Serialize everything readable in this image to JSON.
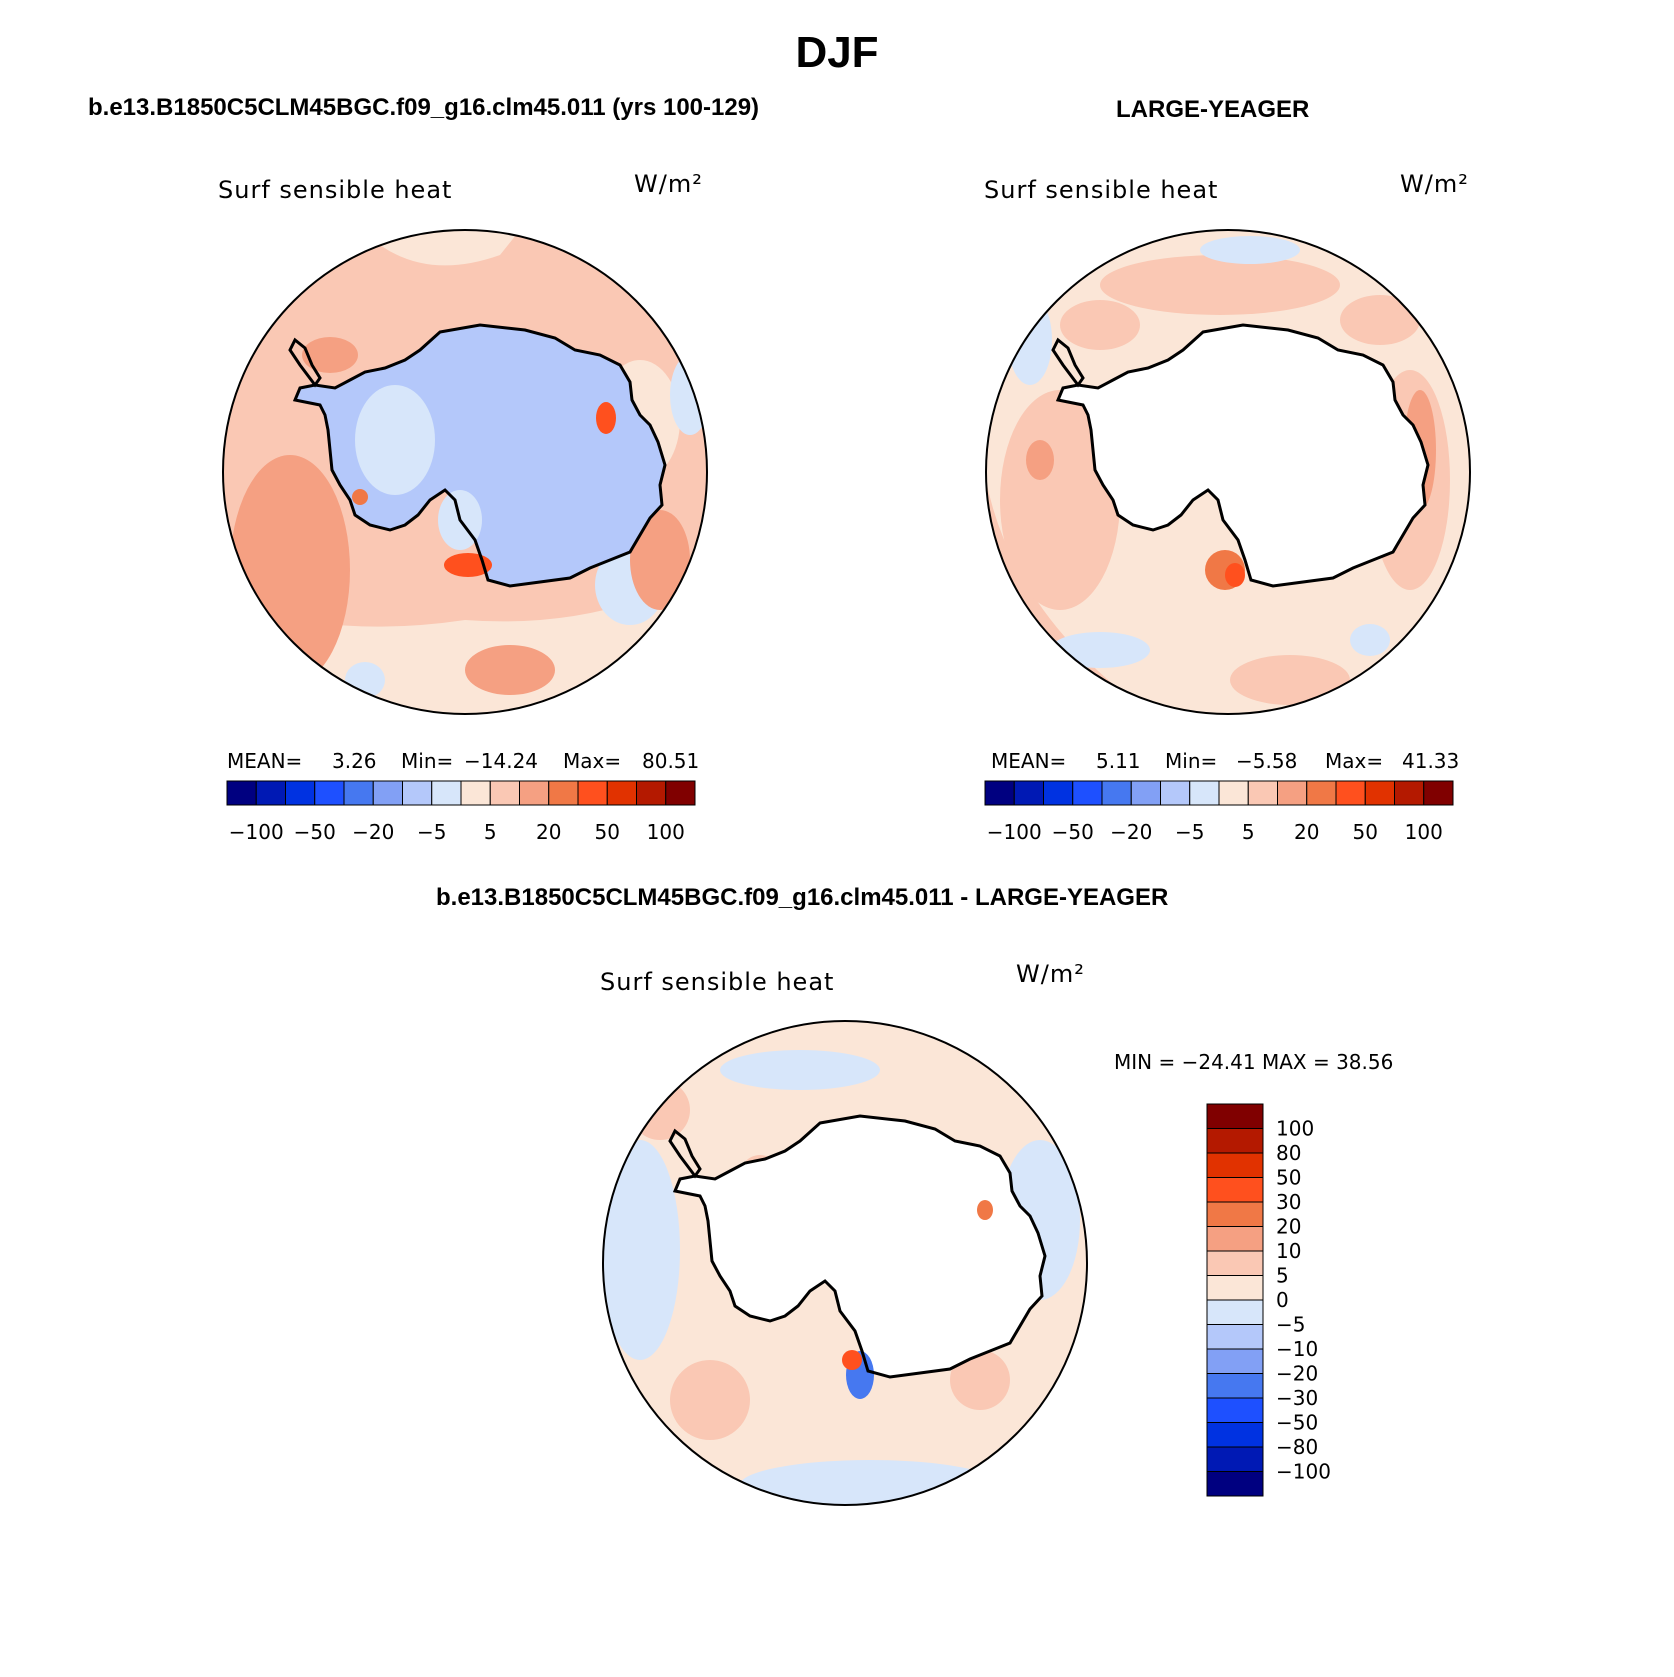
{
  "figure": {
    "season": "DJF",
    "panel_a_title": "b.e13.B1850C5CLM45BGC.f09_g16.clm45.011 (yrs 100-129)",
    "panel_b_title": "LARGE-YEAGER",
    "panel_c_title": "b.e13.B1850C5CLM45BGC.f09_g16.clm45.011 - LARGE-YEAGER"
  },
  "panels": [
    {
      "variable": "Surf sensible heat",
      "units": "W/m²",
      "mean_label": "MEAN=",
      "mean": "3.26",
      "min_label": "Min=",
      "min": "−14.24",
      "max_label": "Max=",
      "max": "80.51"
    },
    {
      "variable": "Surf sensible heat",
      "units": "W/m²",
      "mean_label": "MEAN=",
      "mean": "5.11",
      "min_label": "Min=",
      "min": "−5.58",
      "max_label": "Max=",
      "max": "41.33"
    },
    {
      "variable": "Surf sensible heat",
      "units": "W/m²",
      "minmax_text": "MIN = −24.41 MAX =   38.56"
    }
  ],
  "colorbar_horizontal": {
    "colors": [
      "#000080",
      "#0019b4",
      "#0032e1",
      "#1e50ff",
      "#4678f0",
      "#82a0f5",
      "#b4c8fa",
      "#d7e6fa",
      "#fbe6d7",
      "#fac8b4",
      "#f5a082",
      "#f07846",
      "#ff501e",
      "#e13200",
      "#b41900",
      "#800000"
    ],
    "tick_labels": [
      "−100",
      "−50",
      "−20",
      "−5",
      "5",
      "20",
      "50",
      "100"
    ]
  },
  "colorbar_vertical": {
    "colors": [
      "#800000",
      "#b41900",
      "#e13200",
      "#ff501e",
      "#f07846",
      "#f5a082",
      "#fac8b4",
      "#fbe6d7",
      "#d7e6fa",
      "#b4c8fa",
      "#82a0f5",
      "#4678f0",
      "#1e50ff",
      "#0032e1",
      "#0019b4",
      "#000080"
    ],
    "tick_labels": [
      "100",
      "80",
      "50",
      "30",
      "20",
      "10",
      "5",
      "0",
      "−5",
      "−10",
      "−20",
      "−30",
      "−50",
      "−80",
      "−100"
    ]
  }
}
